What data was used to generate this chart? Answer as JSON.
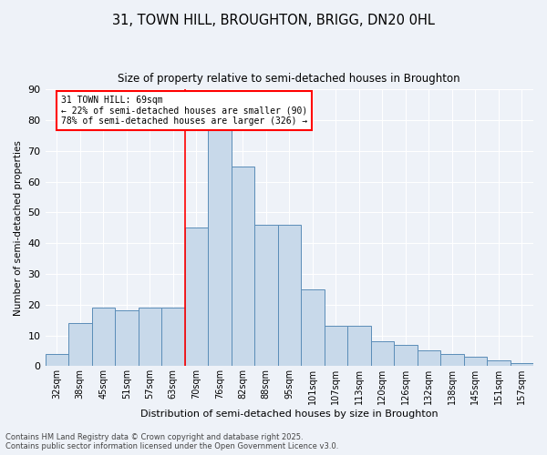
{
  "title1": "31, TOWN HILL, BROUGHTON, BRIGG, DN20 0HL",
  "title2": "Size of property relative to semi-detached houses in Broughton",
  "xlabel": "Distribution of semi-detached houses by size in Broughton",
  "ylabel": "Number of semi-detached properties",
  "categories": [
    "32sqm",
    "38sqm",
    "45sqm",
    "51sqm",
    "57sqm",
    "63sqm",
    "70sqm",
    "76sqm",
    "82sqm",
    "88sqm",
    "95sqm",
    "101sqm",
    "107sqm",
    "113sqm",
    "120sqm",
    "126sqm",
    "132sqm",
    "138sqm",
    "145sqm",
    "151sqm",
    "157sqm"
  ],
  "values": [
    4,
    14,
    19,
    18,
    19,
    19,
    45,
    78,
    65,
    46,
    46,
    25,
    13,
    13,
    8,
    7,
    5,
    4,
    3,
    2,
    1
  ],
  "bar_color": "#c8d9ea",
  "bar_edge_color": "#5b8db8",
  "vline_label": "31 TOWN HILL: 69sqm",
  "annotation_smaller": "← 22% of semi-detached houses are smaller (90)",
  "annotation_larger": "78% of semi-detached houses are larger (326) →",
  "annotation_box_color": "white",
  "annotation_box_edge": "red",
  "vline_color": "red",
  "vline_pos": 6.0,
  "ylim": [
    0,
    90
  ],
  "yticks": [
    0,
    10,
    20,
    30,
    40,
    50,
    60,
    70,
    80,
    90
  ],
  "background_color": "#eef2f8",
  "grid_color": "white",
  "footer": "Contains HM Land Registry data © Crown copyright and database right 2025.\nContains public sector information licensed under the Open Government Licence v3.0."
}
